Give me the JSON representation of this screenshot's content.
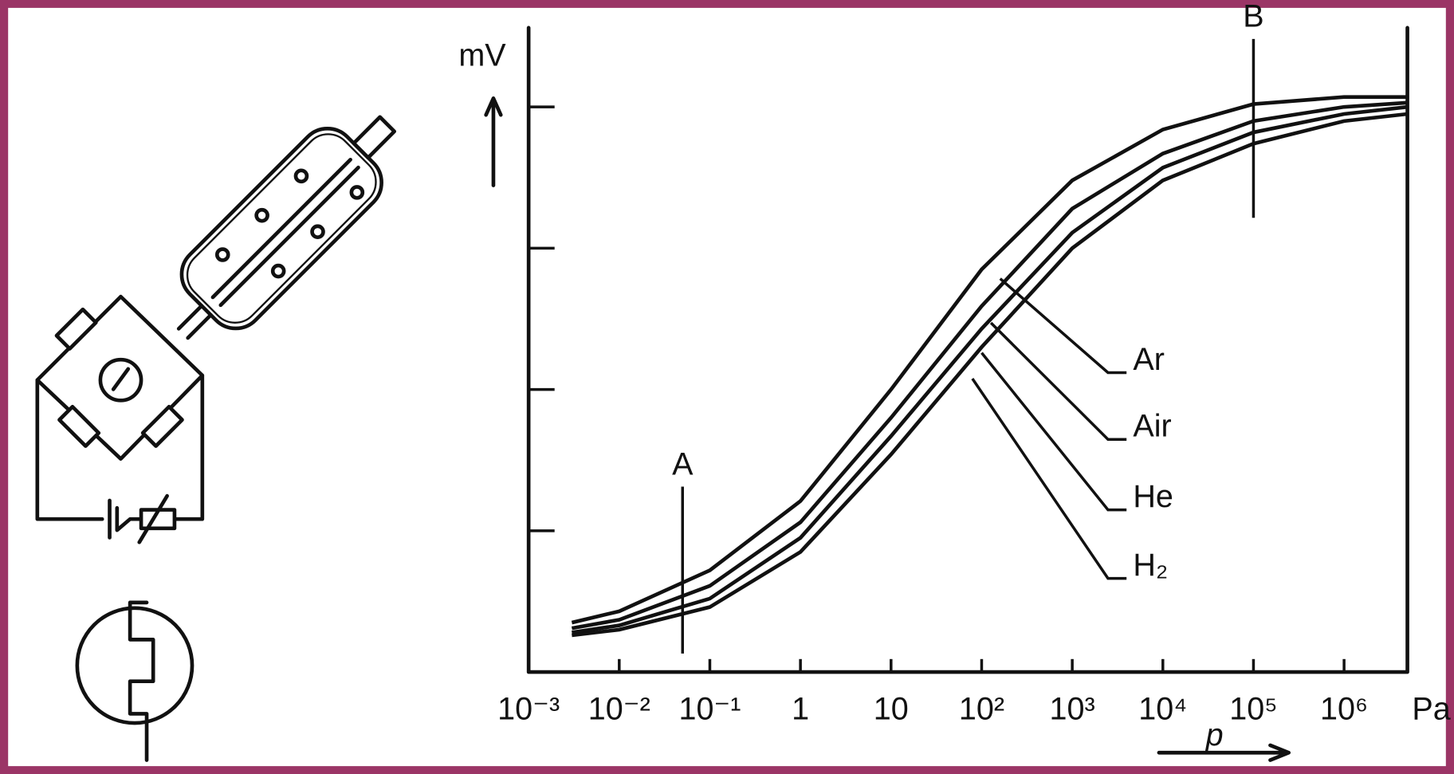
{
  "chart_data": {
    "type": "line",
    "y_label": "mV",
    "x_unit": "Pa",
    "x_label": "p",
    "log_x": true,
    "x": [
      0.003,
      0.01,
      0.1,
      1,
      10,
      100,
      1000,
      10000,
      100000,
      1000000,
      5000000
    ],
    "series": [
      {
        "name": "Ar",
        "color": "#111111",
        "values": [
          0.35,
          0.43,
          0.72,
          1.21,
          2.0,
          2.85,
          3.48,
          3.84,
          4.02,
          4.07,
          4.07
        ]
      },
      {
        "name": "Air",
        "color": "#111111",
        "values": [
          0.31,
          0.37,
          0.61,
          1.06,
          1.8,
          2.59,
          3.28,
          3.67,
          3.9,
          4.0,
          4.03
        ]
      },
      {
        "name": "He",
        "color": "#111111",
        "values": [
          0.28,
          0.33,
          0.52,
          0.95,
          1.67,
          2.43,
          3.11,
          3.57,
          3.82,
          3.95,
          4.0
        ]
      },
      {
        "name": "H₂",
        "color": "#111111",
        "values": [
          0.26,
          0.3,
          0.46,
          0.85,
          1.54,
          2.3,
          3.0,
          3.48,
          3.74,
          3.9,
          3.95
        ]
      }
    ],
    "xlim": [
      0.001,
      5000000
    ],
    "xticks": [
      {
        "value": 0.001,
        "label": "10⁻³"
      },
      {
        "value": 0.01,
        "label": "10⁻²"
      },
      {
        "value": 0.1,
        "label": "10⁻¹"
      },
      1,
      10,
      {
        "value": 100,
        "label": "10²"
      },
      {
        "value": 1000,
        "label": "10³"
      },
      {
        "value": 10000,
        "label": "10⁴"
      },
      {
        "value": 100000,
        "label": "10⁵"
      },
      {
        "value": 1000000,
        "label": "10⁶"
      }
    ],
    "ylim": [
      0,
      4.56
    ],
    "yticks": [
      1,
      2,
      3,
      4
    ],
    "annotations": [
      {
        "text": "A",
        "x": 0.05
      },
      {
        "text": "B",
        "x": 100000
      }
    ]
  }
}
